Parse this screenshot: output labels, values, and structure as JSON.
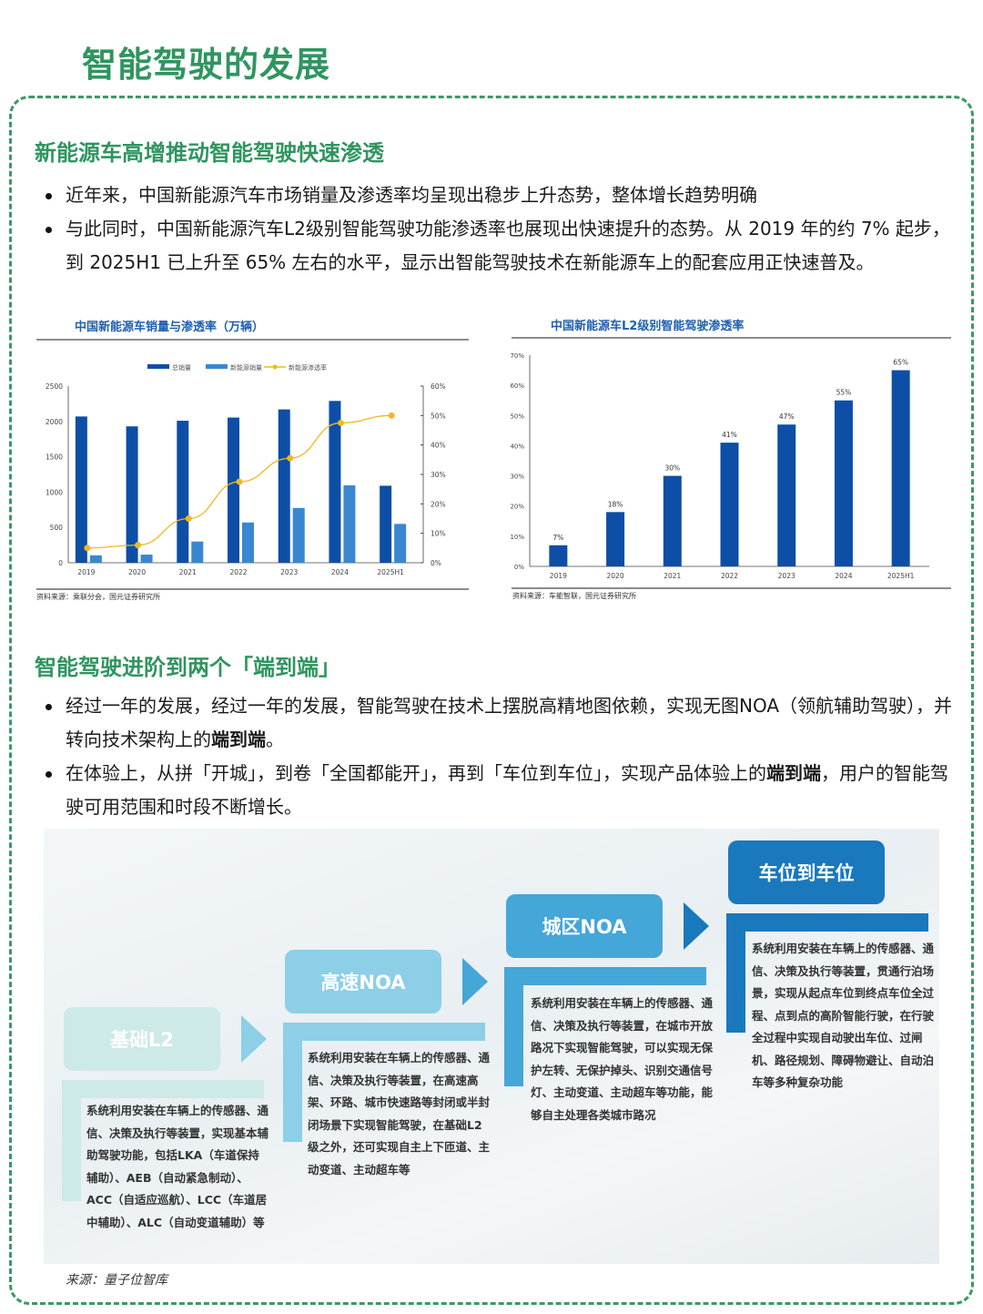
{
  "page_title": "智能驾驶的发展",
  "section1": {
    "heading": "新能源车高增推动智能驾驶快速渗透",
    "bullets": [
      {
        "text": "近年来，中国新能源汽车市场销量及渗透率均呈现出稳步上升态势，整体增长趋势明确"
      },
      {
        "text": "与此同时，中国新能源汽车L2级别智能驾驶功能渗透率也展现出快速提升的态势。从 2019 年的约 7% 起步，到 2025H1 已上升至 65% 左右的水平，显示出智能驾驶技术在新能源车上的配套应用正快速普及。"
      }
    ]
  },
  "chart_data": [
    {
      "type": "bar+line",
      "title": "中国新能源车销量与渗透率（万辆）",
      "categories": [
        "2019",
        "2020",
        "2021",
        "2022",
        "2023",
        "2024",
        "2025H1"
      ],
      "series": [
        {
          "name": "总销量",
          "type": "bar",
          "axis": "left",
          "color": "#0d4ea6",
          "values": [
            2070,
            1930,
            2010,
            2055,
            2170,
            2290,
            1090
          ]
        },
        {
          "name": "新能源销量",
          "type": "bar",
          "axis": "left",
          "color": "#3a86d0",
          "values": [
            105,
            115,
            300,
            570,
            775,
            1095,
            550
          ]
        },
        {
          "name": "新能源渗透率",
          "type": "line",
          "axis": "right",
          "color": "#f0b91e",
          "values": [
            5,
            6,
            15,
            27.5,
            35.5,
            47.5,
            50
          ]
        }
      ],
      "y_left": {
        "ylim": [
          0,
          2500
        ],
        "ticks": [
          "0",
          "500",
          "1000",
          "1500",
          "2000",
          "2500"
        ]
      },
      "y_right": {
        "ylim": [
          0,
          60
        ],
        "ticks": [
          "0%",
          "10%",
          "20%",
          "30%",
          "40%",
          "50%",
          "60%"
        ]
      },
      "legend": "top",
      "grid": false,
      "source": "资料来源：乘联分会，国元证券研究所"
    },
    {
      "type": "bar",
      "title": "中国新能源车L2级别智能驾驶渗透率",
      "categories": [
        "2019",
        "2020",
        "2021",
        "2022",
        "2023",
        "2024",
        "2025H1"
      ],
      "values": [
        7,
        18,
        30,
        41,
        47,
        55,
        65
      ],
      "data_labels": [
        "7%",
        "18%",
        "30%",
        "41%",
        "47%",
        "55%",
        "65%"
      ],
      "color": "#0d4ea6",
      "ylim": [
        0,
        70
      ],
      "yticks": [
        "0%",
        "10%",
        "20%",
        "30%",
        "40%",
        "50%",
        "60%",
        "70%"
      ],
      "grid": false,
      "source": "资料来源：车能智联，国元证券研究所"
    }
  ],
  "section2": {
    "heading": "智能驾驶进阶到两个「端到端」",
    "bullets": [
      {
        "pre": "经过一年的发展，经过一年的发展，智能驾驶在技术上摆脱高精地图依赖，实现无图NOA（领航辅助驾驶），并转向技术架构上的",
        "bold": "端到端",
        "post": "。"
      },
      {
        "pre": "在体验上，从拼「开城」，到卷「全国都能开」，再到「车位到车位」，实现产品体验上的",
        "bold": "端到端",
        "post": "，用户的智能驾驶可用范围和时段不断增长。"
      }
    ]
  },
  "diagram": {
    "stages": [
      {
        "label": "基础L2",
        "color": "#cde9e8",
        "desc": "系统利用安装在车辆上的传感器、通信、决策及执行等装置，实现基本辅助驾驶功能，包括LKA（车道保持辅助）、AEB（自动紧急制动）、ACC（自适应巡航）、LCC（车道居中辅助）、ALC（自动变道辅助）等"
      },
      {
        "label": "高速NOA",
        "color": "#8ccfe6",
        "desc": "系统利用安装在车辆上的传感器、通信、决策及执行等装置，在高速高架、环路、城市快速路等封闭或半封闭场景下实现智能驾驶，在基础L2级之外，还可实现自主上下匝道、主动变道、主动超车等"
      },
      {
        "label": "城区NOA",
        "color": "#45a6d8",
        "desc": "系统利用安装在车辆上的传感器、通信、决策及执行等装置，在城市开放路况下实现智能驾驶，可以实现无保护左转、无保护掉头、识别交通信号灯、主动变道、主动超车等功能，能够自主处理各类城市路况"
      },
      {
        "label": "车位到车位",
        "color": "#1a78bd",
        "desc": "系统利用安装在车辆上的传感器、通信、决策及执行等装置，贯通行泊场景，实现从起点车位到终点车位全过程、点到点的高阶智能行驶，在行驶全过程中实现自动驶出车位、过闸机、路径规划、障碍物避让、自动泊车等多种复杂功能"
      }
    ],
    "source": "来源：量子位智库"
  }
}
